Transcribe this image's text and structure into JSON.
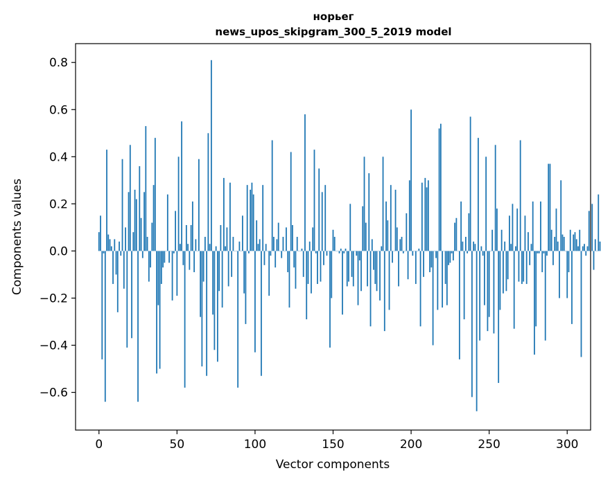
{
  "chart_data": {
    "type": "bar",
    "title_line1": "норьег",
    "title_line2": "news_upos_skipgram_300_5_2019 model",
    "xlabel": "Vector components",
    "ylabel": "Components values",
    "xlim": [
      -15,
      315
    ],
    "ylim": [
      -0.76,
      0.88
    ],
    "x_ticks": [
      0,
      50,
      100,
      150,
      200,
      250,
      300
    ],
    "y_ticks": [
      0.8,
      0.6,
      0.4,
      0.2,
      0.0,
      -0.2,
      -0.4,
      -0.6
    ],
    "y_tick_labels": [
      "0.8",
      "0.6",
      "0.4",
      "0.2",
      "0.0",
      "−0.2",
      "−0.4",
      "−0.6"
    ],
    "bar_color": "#1f77b4",
    "values": [
      0.08,
      0.15,
      -0.46,
      -0.01,
      -0.64,
      0.43,
      0.07,
      0.05,
      0.02,
      -0.14,
      0.05,
      -0.1,
      -0.26,
      0.04,
      -0.02,
      0.39,
      -0.16,
      0.1,
      -0.41,
      0.25,
      0.45,
      -0.37,
      0.08,
      0.26,
      0.22,
      -0.64,
      0.36,
      0.14,
      -0.03,
      0.25,
      0.53,
      0.06,
      -0.13,
      -0.07,
      0.12,
      0.28,
      0.48,
      -0.52,
      -0.23,
      -0.5,
      -0.14,
      -0.07,
      -0.05,
      0.0,
      0.24,
      -0.05,
      0.0,
      -0.21,
      -0.01,
      0.17,
      -0.19,
      0.4,
      0.03,
      0.55,
      -0.06,
      -0.58,
      0.11,
      0.03,
      -0.08,
      0.11,
      0.21,
      -0.09,
      0.05,
      0.0,
      0.39,
      -0.28,
      -0.49,
      -0.13,
      0.06,
      -0.53,
      0.5,
      0.03,
      0.81,
      -0.27,
      -0.42,
      0.02,
      -0.47,
      -0.17,
      0.11,
      -0.24,
      0.31,
      0.02,
      0.1,
      -0.15,
      0.29,
      -0.11,
      0.06,
      0.0,
      0.0,
      -0.58,
      0.04,
      0.0,
      0.15,
      -0.18,
      -0.31,
      0.28,
      -0.01,
      0.26,
      0.29,
      0.24,
      -0.43,
      0.13,
      0.03,
      0.05,
      -0.53,
      0.28,
      -0.06,
      0.03,
      0.0,
      -0.19,
      -0.02,
      0.47,
      0.06,
      -0.07,
      0.05,
      0.12,
      0.0,
      -0.03,
      0.06,
      0.0,
      0.1,
      -0.09,
      -0.24,
      0.42,
      0.11,
      -0.07,
      -0.16,
      0.06,
      0.0,
      0.0,
      0.01,
      -0.11,
      0.58,
      -0.29,
      -0.14,
      0.04,
      -0.18,
      0.1,
      0.43,
      -0.01,
      -0.14,
      0.35,
      -0.13,
      0.25,
      -0.06,
      0.28,
      -0.02,
      0.0,
      -0.41,
      -0.2,
      0.09,
      0.06,
      0.0,
      0.0,
      -0.01,
      0.01,
      -0.27,
      -0.01,
      0.01,
      -0.15,
      -0.13,
      0.2,
      -0.11,
      -0.15,
      0.0,
      -0.02,
      -0.23,
      -0.04,
      -0.17,
      0.19,
      0.4,
      0.12,
      -0.15,
      0.33,
      -0.32,
      0.05,
      -0.08,
      -0.14,
      -0.17,
      0.0,
      -0.21,
      0.02,
      0.4,
      -0.34,
      0.21,
      0.13,
      -0.25,
      0.28,
      -0.05,
      0.0,
      0.26,
      0.1,
      -0.15,
      0.05,
      0.06,
      -0.01,
      0.0,
      0.16,
      -0.12,
      0.3,
      0.6,
      -0.02,
      0.0,
      -0.14,
      0.0,
      0.01,
      -0.32,
      0.29,
      -0.11,
      0.31,
      0.27,
      0.3,
      -0.09,
      -0.07,
      -0.4,
      0.0,
      -0.03,
      -0.25,
      0.52,
      0.54,
      -0.24,
      0.0,
      -0.14,
      -0.23,
      -0.06,
      -0.05,
      -0.01,
      -0.04,
      0.12,
      0.14,
      0.0,
      -0.46,
      0.21,
      0.04,
      -0.29,
      0.06,
      -0.01,
      0.16,
      0.57,
      -0.62,
      0.04,
      0.03,
      -0.68,
      0.48,
      -0.38,
      0.02,
      -0.02,
      -0.23,
      0.4,
      -0.34,
      -0.28,
      0.0,
      0.09,
      -0.35,
      0.45,
      0.18,
      -0.56,
      -0.25,
      0.09,
      -0.18,
      0.04,
      -0.17,
      -0.12,
      0.15,
      0.03,
      0.2,
      -0.33,
      0.02,
      0.18,
      -0.13,
      0.47,
      -0.14,
      -0.13,
      0.15,
      -0.14,
      0.08,
      -0.06,
      0.03,
      0.21,
      -0.44,
      -0.32,
      -0.01,
      -0.01,
      0.21,
      -0.09,
      -0.01,
      -0.38,
      -0.02,
      0.37,
      0.37,
      0.09,
      -0.06,
      0.06,
      0.18,
      0.04,
      -0.2,
      0.3,
      0.07,
      0.06,
      0.0,
      -0.2,
      -0.09,
      0.09,
      -0.31,
      0.07,
      0.08,
      0.05,
      0.02,
      0.09,
      -0.45,
      0.02,
      0.03,
      -0.02,
      0.02,
      0.17,
      0.0,
      0.2,
      -0.08,
      0.05,
      0.0,
      0.24,
      0.04
    ]
  }
}
